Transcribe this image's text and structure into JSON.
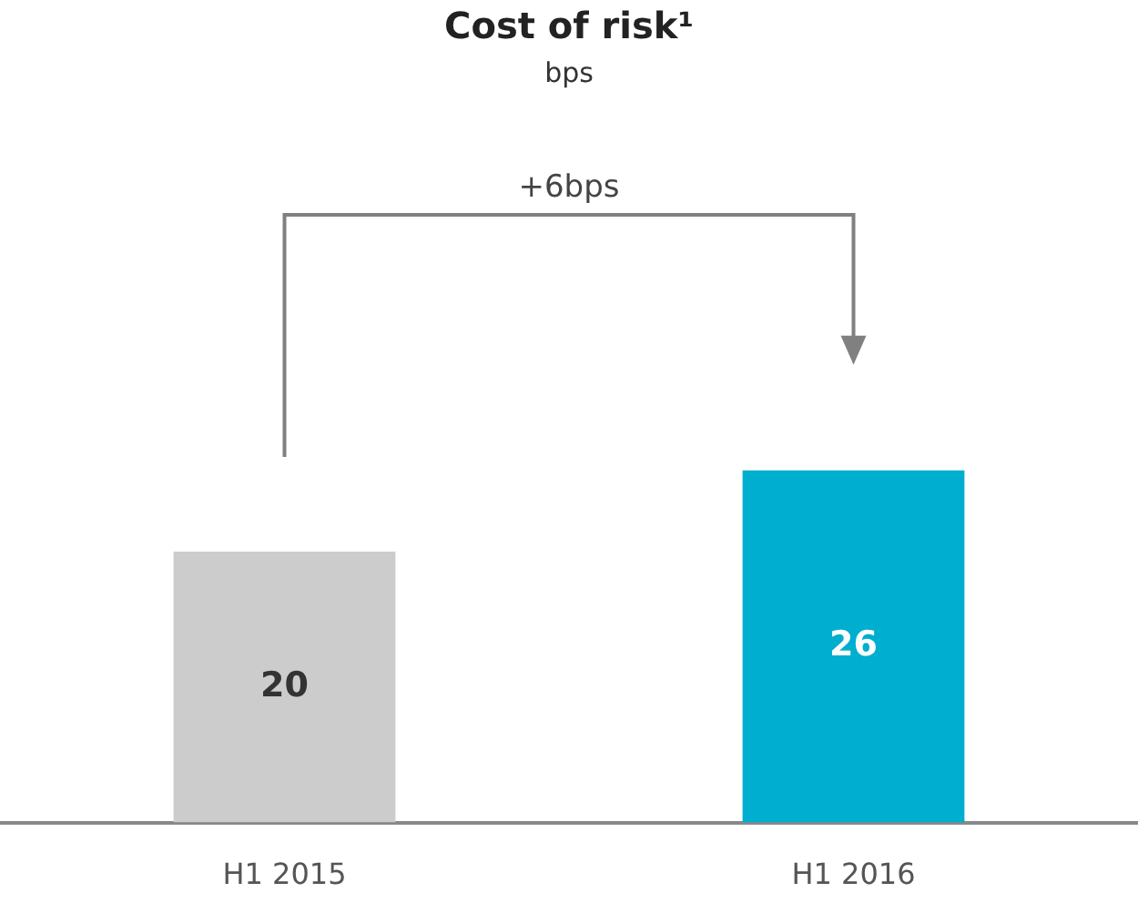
{
  "chart_data": {
    "type": "bar",
    "title": "Cost of risk¹",
    "subtitle": "bps",
    "categories": [
      "H1 2015",
      "H1 2016"
    ],
    "values": [
      20,
      26
    ],
    "colors": [
      "#cccccc",
      "#00aecf"
    ],
    "data_labels": true,
    "tick_labels": "x",
    "annotations": [
      "+6bps"
    ]
  }
}
